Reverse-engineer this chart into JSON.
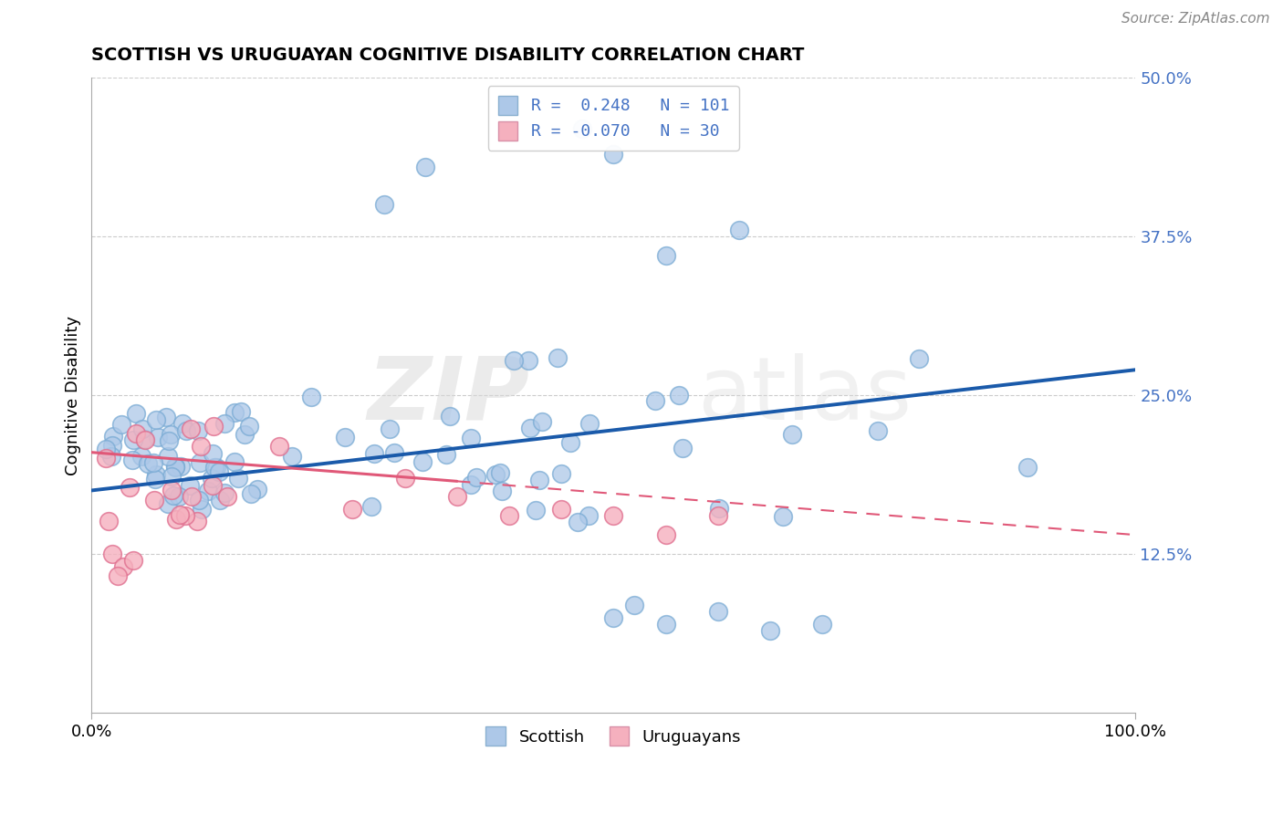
{
  "title": "SCOTTISH VS URUGUAYAN COGNITIVE DISABILITY CORRELATION CHART",
  "source": "Source: ZipAtlas.com",
  "ylabel": "Cognitive Disability",
  "xmin": 0.0,
  "xmax": 1.0,
  "ymin": 0.0,
  "ymax": 0.5,
  "grid_color": "#cccccc",
  "background_color": "#ffffff",
  "scottish_color": "#adc8e8",
  "scottish_edge_color": "#7aabd4",
  "scottish_line_color": "#1a5aaa",
  "uruguayan_color": "#f5b0be",
  "uruguayan_edge_color": "#e07090",
  "uruguayan_line_color": "#e05878",
  "r_scottish": 0.248,
  "n_scottish": 101,
  "r_uruguayan": -0.07,
  "n_uruguayan": 30,
  "watermark_zip": "ZIP",
  "watermark_atlas": "atlas",
  "ytick_color": "#4472c4",
  "legend_r_color": "#4472c4"
}
